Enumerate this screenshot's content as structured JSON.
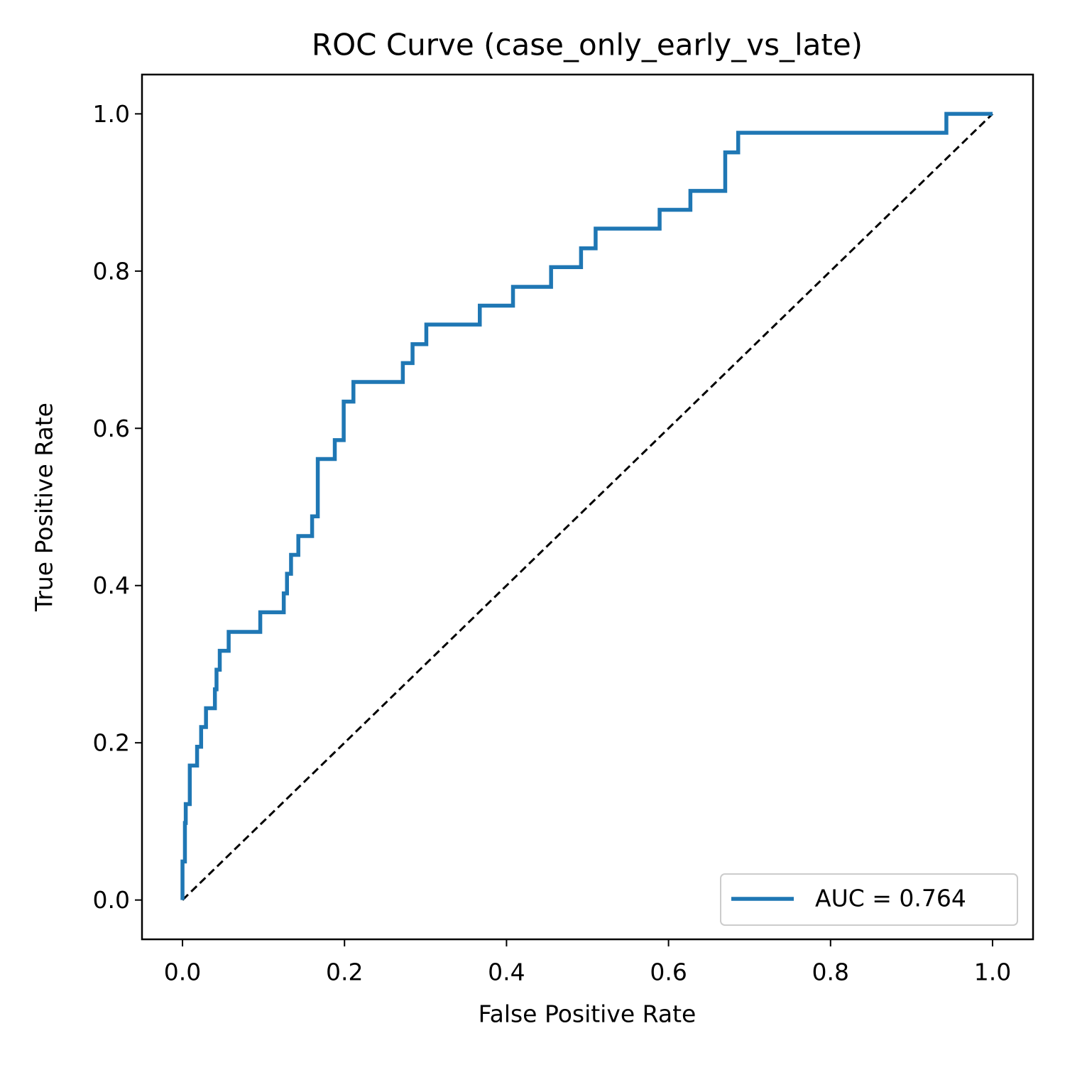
{
  "chart_data": {
    "type": "line",
    "title": "ROC Curve (case_only_early_vs_late)",
    "x_label": "False Positive Rate",
    "y_label": "True Positive Rate",
    "xlim": [
      -0.05,
      1.05
    ],
    "ylim": [
      -0.05,
      1.05
    ],
    "xticks": [
      {
        "value": 0,
        "label": "0.0"
      },
      0.2,
      0.4,
      0.6,
      0.8,
      {
        "value": 1,
        "label": "1.0"
      }
    ],
    "yticks": [
      {
        "value": 0,
        "label": "0.0"
      },
      0.2,
      0.4,
      0.6,
      0.8,
      {
        "value": 1,
        "label": "1.0"
      }
    ],
    "grid": false,
    "legend": "lower right",
    "series": [
      {
        "name": "AUC = 0.764",
        "color": "#1f77b4",
        "dashed": false,
        "x": [
          0,
          0,
          0.003,
          0.003,
          0.004,
          0.004,
          0.009,
          0.009,
          0.018,
          0.018,
          0.023,
          0.023,
          0.029,
          0.029,
          0.04,
          0.04,
          0.042,
          0.042,
          0.046,
          0.046,
          0.057,
          0.057,
          0.096,
          0.096,
          0.125,
          0.125,
          0.129,
          0.129,
          0.134,
          0.134,
          0.143,
          0.143,
          0.16,
          0.16,
          0.167,
          0.167,
          0.188,
          0.188,
          0.199,
          0.199,
          0.211,
          0.211,
          0.272,
          0.272,
          0.284,
          0.284,
          0.301,
          0.301,
          0.367,
          0.367,
          0.408,
          0.408,
          0.455,
          0.455,
          0.492,
          0.492,
          0.51,
          0.51,
          0.589,
          0.589,
          0.627,
          0.627,
          0.67,
          0.67,
          0.686,
          0.686,
          0.943,
          0.943,
          1.0
        ],
        "values": [
          0,
          0.049,
          0.049,
          0.098,
          0.098,
          0.122,
          0.122,
          0.171,
          0.171,
          0.195,
          0.195,
          0.22,
          0.22,
          0.244,
          0.244,
          0.268,
          0.268,
          0.293,
          0.293,
          0.317,
          0.317,
          0.341,
          0.341,
          0.366,
          0.366,
          0.39,
          0.39,
          0.415,
          0.415,
          0.439,
          0.439,
          0.463,
          0.463,
          0.488,
          0.488,
          0.561,
          0.561,
          0.585,
          0.585,
          0.634,
          0.634,
          0.659,
          0.659,
          0.683,
          0.683,
          0.707,
          0.707,
          0.732,
          0.732,
          0.756,
          0.756,
          0.78,
          0.78,
          0.805,
          0.805,
          0.829,
          0.829,
          0.854,
          0.854,
          0.878,
          0.878,
          0.902,
          0.902,
          0.951,
          0.951,
          0.976,
          0.976,
          1.0,
          1.0
        ]
      },
      {
        "color": "#000000",
        "dashed": true,
        "x": [
          0,
          1
        ],
        "values": [
          0,
          1
        ]
      }
    ]
  }
}
